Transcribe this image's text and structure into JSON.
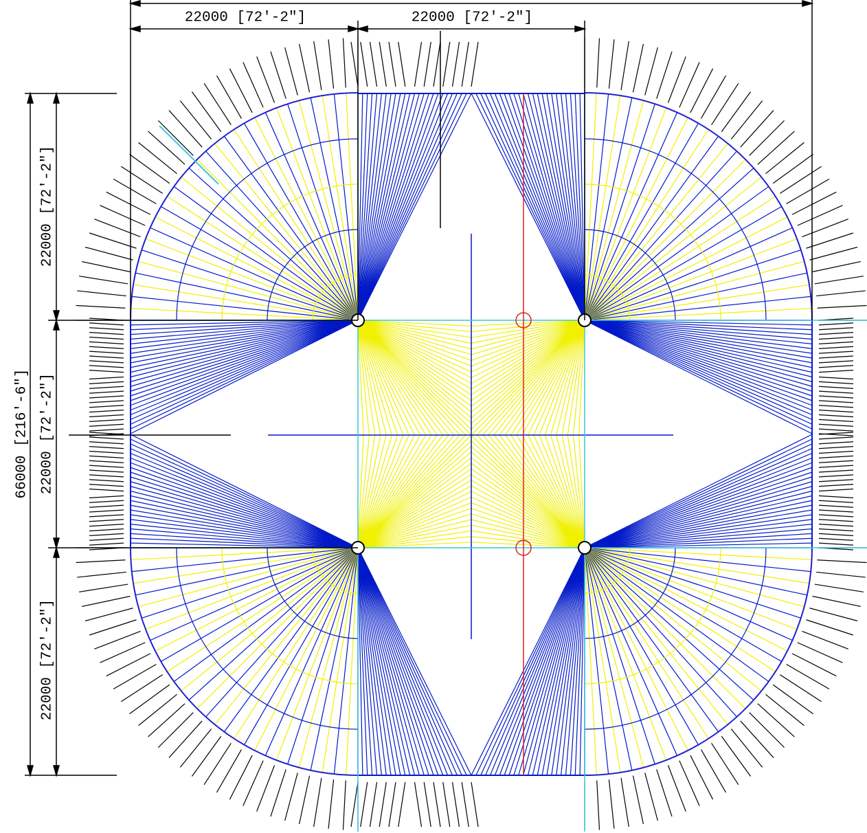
{
  "dimensions": {
    "top": [
      "22000 [72′-2″]",
      "22000 [72′-2″]"
    ],
    "left": [
      "22000 [72′-2″]",
      "22000 [72′-2″]",
      "22000 [72′-2″]"
    ],
    "total": "66000 [216′-6″]"
  }
}
